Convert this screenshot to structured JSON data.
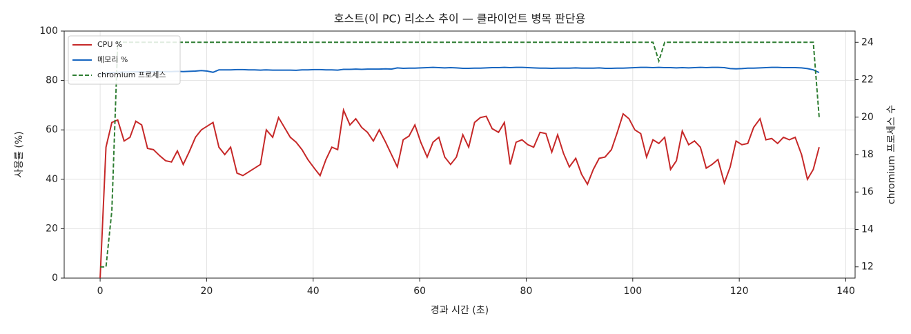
{
  "chart_data": {
    "type": "line",
    "title": "호스트(이 PC) 리소스 추이 — 클라이언트 병목 판단용",
    "xlabel": "경과 시간 (초)",
    "ylabel": "사용률 (%)",
    "y2label": "chromium 프로세스 수",
    "x": [
      0,
      1.1,
      2.2,
      3.3,
      4.5,
      5.6,
      6.7,
      7.8,
      8.9,
      10.0,
      11.2,
      12.3,
      13.4,
      14.5,
      15.6,
      16.7,
      17.9,
      19.0,
      20.1,
      21.2,
      22.3,
      23.4,
      24.5,
      25.7,
      26.8,
      27.9,
      29.0,
      30.1,
      31.2,
      32.4,
      33.5,
      34.6,
      35.7,
      36.8,
      37.9,
      39.0,
      40.2,
      41.3,
      42.4,
      43.5,
      44.6,
      45.7,
      46.9,
      48.0,
      49.1,
      50.2,
      51.3,
      52.4,
      53.6,
      54.7,
      55.8,
      56.9,
      58.0,
      59.1,
      60.2,
      61.4,
      62.5,
      63.6,
      64.7,
      65.8,
      66.9,
      68.1,
      69.2,
      70.3,
      71.4,
      72.5,
      73.6,
      74.8,
      75.9,
      77.0,
      78.1,
      79.2,
      80.3,
      81.4,
      82.6,
      83.7,
      84.8,
      85.9,
      87.0,
      88.1,
      89.3,
      90.4,
      91.5,
      92.6,
      93.7,
      94.8,
      96.0,
      97.1,
      98.2,
      99.3,
      100.4,
      101.5,
      102.6,
      103.8,
      104.9,
      106.0,
      107.1,
      108.2,
      109.3,
      110.5,
      111.6,
      112.7,
      113.8,
      114.9,
      116.0,
      117.2,
      118.3,
      119.4,
      120.5,
      121.6,
      122.7,
      123.9,
      125.0,
      126.1,
      127.2,
      128.3,
      129.4,
      130.5,
      131.7,
      132.8,
      133.9,
      135.0
    ],
    "series": [
      {
        "name": "CPU %",
        "color": "#c62828",
        "axis": "y",
        "linestyle": "solid",
        "values": [
          0,
          53,
          63,
          64,
          55.5,
          57,
          63.5,
          62,
          52.5,
          52,
          49.5,
          47.5,
          47,
          51.5,
          46,
          51,
          57,
          60,
          61.5,
          63,
          53,
          50,
          53,
          42.5,
          41.5,
          43,
          44.5,
          46,
          60,
          57,
          65,
          61,
          57,
          55,
          52,
          48,
          44.5,
          41.5,
          48,
          53,
          52,
          68,
          62,
          64.5,
          61,
          59,
          55.5,
          60,
          55,
          50,
          45,
          56,
          57.5,
          62,
          55,
          49,
          55,
          57,
          49,
          46,
          49,
          58,
          53,
          63,
          65,
          65.5,
          60.5,
          59,
          63,
          46,
          55,
          56,
          54,
          53,
          59,
          58.5,
          51,
          58,
          50.5,
          45,
          48.5,
          42,
          38,
          44,
          48.5,
          49,
          52,
          59,
          66.5,
          64.5,
          60,
          58.5,
          49,
          56,
          54.5,
          57,
          44,
          47.5,
          59.5,
          54,
          55.5,
          53,
          44.5,
          46,
          48,
          38.5,
          45,
          55.5,
          54,
          54.5,
          61,
          64.5,
          56,
          56.5,
          54.5,
          57,
          56,
          57,
          50,
          40,
          44,
          53
        ]
      },
      {
        "name": "메모리 %",
        "color": "#1565c0",
        "axis": "y",
        "linestyle": "solid",
        "values": [
          82.5,
          83,
          83.2,
          83.3,
          83.4,
          83.4,
          83.5,
          83.5,
          83.5,
          83.6,
          83.6,
          83.6,
          83.6,
          83.7,
          83.6,
          83.7,
          83.8,
          84,
          83.8,
          83.3,
          84.3,
          84.3,
          84.3,
          84.4,
          84.4,
          84.3,
          84.3,
          84.2,
          84.3,
          84.2,
          84.2,
          84.2,
          84.2,
          84.1,
          84.3,
          84.3,
          84.4,
          84.4,
          84.3,
          84.3,
          84.2,
          84.5,
          84.5,
          84.6,
          84.5,
          84.6,
          84.6,
          84.6,
          84.7,
          84.6,
          85.1,
          84.9,
          85,
          85,
          85.1,
          85.2,
          85.3,
          85.2,
          85.1,
          85.2,
          85.1,
          84.9,
          84.9,
          85,
          85,
          85.1,
          85.2,
          85.2,
          85.3,
          85.2,
          85.3,
          85.3,
          85.2,
          85.1,
          85,
          85,
          84.9,
          85,
          85,
          85,
          85.1,
          85,
          85,
          85,
          85.1,
          84.9,
          84.9,
          85,
          85,
          85.1,
          85.2,
          85.3,
          85.3,
          85.2,
          85.3,
          85.2,
          85.2,
          85.1,
          85.2,
          85.1,
          85.2,
          85.3,
          85.2,
          85.3,
          85.3,
          85.2,
          84.8,
          84.7,
          84.8,
          85,
          85,
          85.1,
          85.2,
          85.3,
          85.3,
          85.2,
          85.2,
          85.2,
          85.1,
          84.8,
          84.3,
          83.2
        ]
      },
      {
        "name": "chromium 프로세스",
        "color": "#2e7d32",
        "axis": "y2",
        "linestyle": "dashed",
        "values": [
          12,
          12,
          15,
          24,
          24,
          24,
          24,
          24,
          24,
          24,
          24,
          24,
          24,
          24,
          24,
          24,
          24,
          24,
          24,
          24,
          24,
          24,
          24,
          24,
          24,
          24,
          24,
          24,
          24,
          24,
          24,
          24,
          24,
          24,
          24,
          24,
          24,
          24,
          24,
          24,
          24,
          24,
          24,
          24,
          24,
          24,
          24,
          24,
          24,
          24,
          24,
          24,
          24,
          24,
          24,
          24,
          24,
          24,
          24,
          24,
          24,
          24,
          24,
          24,
          24,
          24,
          24,
          24,
          24,
          24,
          24,
          24,
          24,
          24,
          24,
          24,
          24,
          24,
          24,
          24,
          24,
          24,
          24,
          24,
          24,
          24,
          24,
          24,
          24,
          24,
          24,
          24,
          24,
          24,
          23,
          24,
          24,
          24,
          24,
          24,
          24,
          24,
          24,
          24,
          24,
          24,
          24,
          24,
          24,
          24,
          24,
          24,
          24,
          24,
          24,
          24,
          24,
          24,
          24,
          24,
          24,
          20
        ]
      }
    ],
    "xlim": [
      -6.75,
      141.75
    ],
    "xticks": [
      0,
      20,
      40,
      60,
      80,
      100,
      120,
      140
    ],
    "ylim": [
      0,
      100
    ],
    "yticks": [
      0,
      20,
      40,
      60,
      80,
      100
    ],
    "y2lim": [
      11.4,
      24.6
    ],
    "y2ticks": [
      12,
      14,
      16,
      18,
      20,
      22,
      24
    ],
    "grid": true,
    "legend": "upper-left"
  }
}
